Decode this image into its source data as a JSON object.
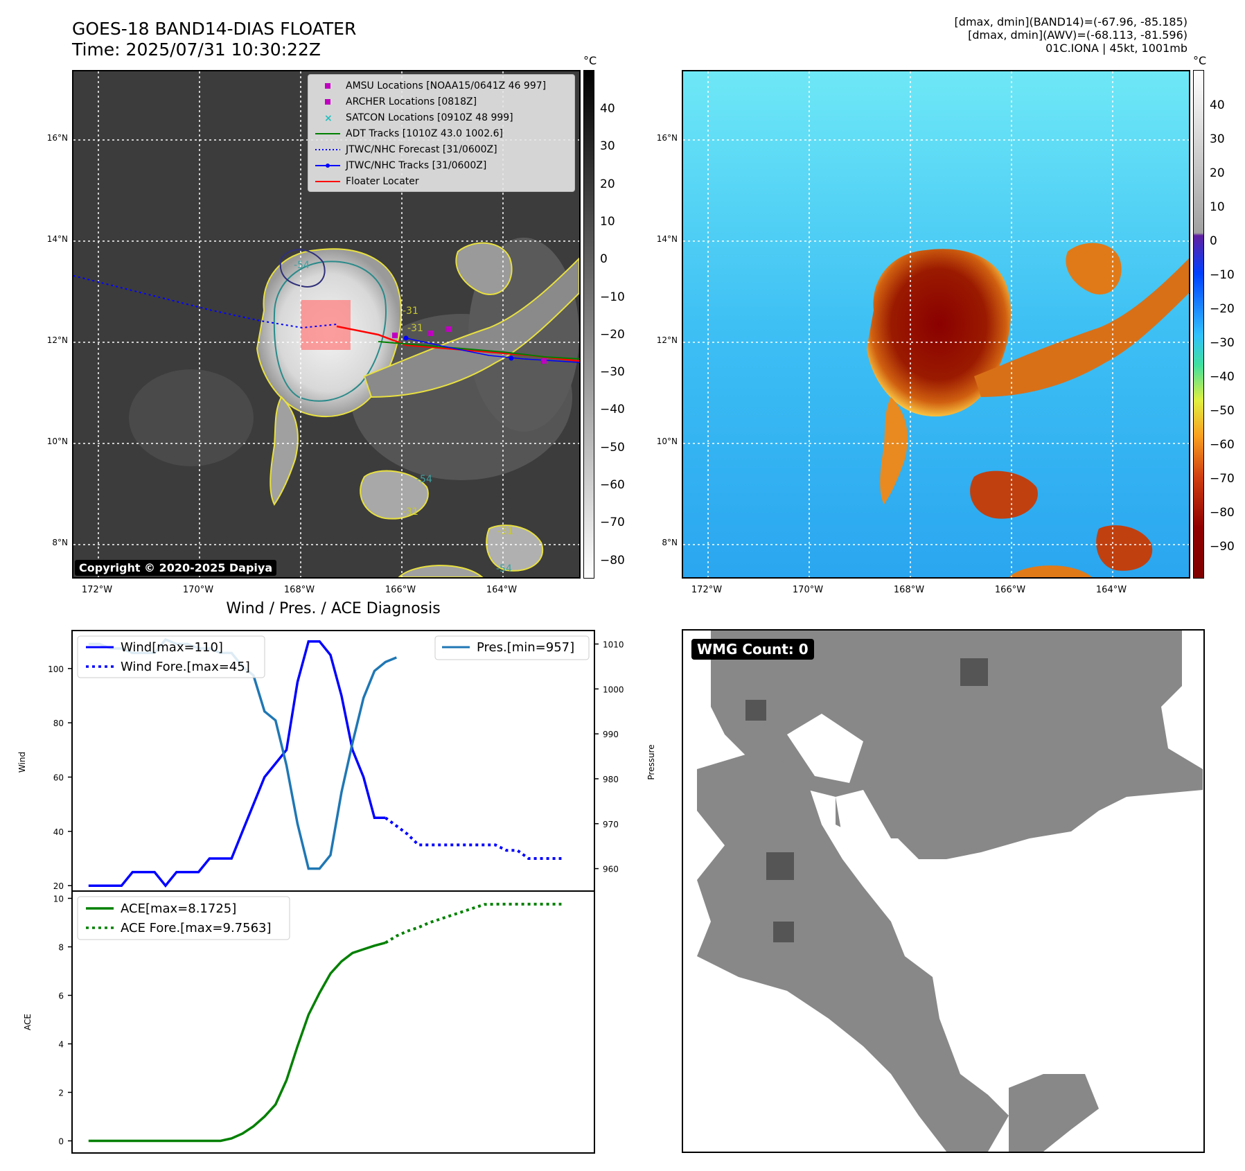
{
  "header": {
    "title_line1": "GOES-18 BAND14-DIAS FLOATER",
    "title_line2": "Time: 2025/07/31 10:30:22Z",
    "info_line1": "[dmax, dmin](BAND14)=(-67.96, -85.185)",
    "info_line2": "[dmax, dmin](AWV)=(-68.113, -81.596)",
    "info_line3": "01C.IONA | 45kt, 1001mb"
  },
  "map": {
    "lat_labels": [
      "16°N",
      "14°N",
      "12°N",
      "10°N",
      "8°N"
    ],
    "lon_labels": [
      "172°W",
      "170°W",
      "168°W",
      "166°W",
      "164°W"
    ],
    "copyright": "Copyright © 2020-2025 Dapiya",
    "contour_labels": [
      "-31",
      "-54",
      "-31",
      "-54",
      "-31",
      "-54",
      "-31"
    ]
  },
  "legend": {
    "items": [
      {
        "label": "AMSU Locations [NOAA15/0641Z 46 997]",
        "color": "#c000c0",
        "marker": "square"
      },
      {
        "label": "ARCHER Locations [0818Z]",
        "color": "#c000c0",
        "marker": "square"
      },
      {
        "label": "SATCON Locations [0910Z 48 999]",
        "color": "#20c0c0",
        "marker": "x"
      },
      {
        "label": "ADT Tracks [1010Z 43.0 1002.6]",
        "color": "#008000",
        "marker": "line"
      },
      {
        "label": "JTWC/NHC Forecast [31/0600Z]",
        "color": "#0000ff",
        "marker": "dotted"
      },
      {
        "label": "JTWC/NHC Tracks [31/0600Z]",
        "color": "#0000ff",
        "marker": "line-dot"
      },
      {
        "label": "Floater Locater",
        "color": "#ff0000",
        "marker": "line"
      }
    ]
  },
  "colorbar_left": {
    "unit": "°C",
    "ticks": [
      "40",
      "30",
      "20",
      "10",
      "0",
      "−10",
      "−20",
      "−30",
      "−40",
      "−50",
      "−60",
      "−70",
      "−80"
    ]
  },
  "colorbar_right": {
    "unit": "°C",
    "ticks": [
      "40",
      "30",
      "20",
      "10",
      "0",
      "−10",
      "−20",
      "−30",
      "−40",
      "−50",
      "−60",
      "−70",
      "−80",
      "−90"
    ]
  },
  "diagnosis": {
    "title": "Wind / Pres. / ACE Diagnosis",
    "wind_ylabel": "Wind",
    "pres_ylabel": "Pressure",
    "ace_ylabel": "ACE",
    "wind_ticks": [
      "100",
      "80",
      "60",
      "40",
      "20"
    ],
    "pres_ticks": [
      "1010",
      "1000",
      "990",
      "980",
      "970",
      "960"
    ],
    "ace_ticks": [
      "10",
      "8",
      "6",
      "4",
      "2",
      "0"
    ],
    "legend_wind": "Wind[max=110]",
    "legend_wind_fore": "Wind Fore.[max=45]",
    "legend_pres": "Pres.[min=957]",
    "legend_ace": "ACE[max=8.1725]",
    "legend_ace_fore": "ACE Fore.[max=9.7563]"
  },
  "wmg": {
    "label": "WMG Count: 0"
  },
  "chart_data": [
    {
      "type": "line",
      "title": "Wind / Pres. / ACE Diagnosis",
      "ylabel": "Wind",
      "ylim": [
        18,
        114
      ],
      "series": [
        {
          "name": "Wind[max=110]",
          "x": [
            0,
            1,
            2,
            3,
            4,
            5,
            6,
            7,
            8,
            9,
            10,
            11,
            12,
            13,
            14,
            15,
            16,
            17,
            18,
            19,
            20,
            21,
            22,
            23,
            24,
            25,
            26,
            27
          ],
          "values": [
            20,
            20,
            20,
            20,
            25,
            25,
            25,
            20,
            25,
            25,
            25,
            30,
            30,
            30,
            40,
            50,
            60,
            65,
            70,
            95,
            110,
            110,
            105,
            90,
            70,
            60,
            45,
            45
          ]
        },
        {
          "name": "Wind Fore.[max=45]",
          "x": [
            27,
            28,
            29,
            30,
            31,
            32,
            33,
            34,
            35,
            36,
            37,
            38,
            39,
            40,
            41,
            42,
            43
          ],
          "values": [
            45,
            42,
            39,
            35,
            35,
            35,
            35,
            35,
            35,
            35,
            35,
            33,
            33,
            30,
            30,
            30,
            30
          ]
        }
      ]
    },
    {
      "type": "line",
      "ylabel": "Pressure",
      "ylim": [
        955,
        1013
      ],
      "series": [
        {
          "name": "Pres.[min=957]",
          "x": [
            0,
            1,
            2,
            3,
            4,
            5,
            6,
            7,
            8,
            9,
            10,
            11,
            12,
            13,
            14,
            15,
            16,
            17,
            18,
            19,
            20,
            21,
            22,
            23,
            24,
            25,
            26,
            27,
            28
          ],
          "values": [
            1010,
            1010,
            1009,
            1009,
            1008,
            1008,
            1008,
            1011,
            1010,
            1010,
            1009,
            1009,
            1008,
            1008,
            1005,
            1003,
            995,
            993,
            983,
            970,
            960,
            960,
            963,
            977,
            988,
            998,
            1004,
            1006,
            1007
          ]
        }
      ]
    },
    {
      "type": "line",
      "ylabel": "ACE",
      "ylim": [
        -0.5,
        10.3
      ],
      "series": [
        {
          "name": "ACE[max=8.1725]",
          "x": [
            0,
            1,
            2,
            3,
            4,
            5,
            6,
            7,
            8,
            9,
            10,
            11,
            12,
            13,
            14,
            15,
            16,
            17,
            18,
            19,
            20,
            21,
            22,
            23,
            24,
            25,
            26,
            27
          ],
          "values": [
            0,
            0,
            0,
            0,
            0,
            0,
            0,
            0,
            0,
            0,
            0,
            0,
            0,
            0.1,
            0.3,
            0.6,
            1.0,
            1.5,
            2.5,
            3.9,
            5.2,
            6.1,
            6.9,
            7.4,
            7.75,
            7.9,
            8.05,
            8.17
          ]
        },
        {
          "name": "ACE Fore.[max=9.7563]",
          "x": [
            27,
            28,
            29,
            30,
            31,
            32,
            33,
            34,
            35,
            36,
            37,
            38,
            39,
            40,
            41,
            42,
            43
          ],
          "values": [
            8.17,
            8.45,
            8.65,
            8.8,
            9.0,
            9.15,
            9.3,
            9.45,
            9.6,
            9.75,
            9.76,
            9.76,
            9.76,
            9.76,
            9.76,
            9.76,
            9.76
          ]
        }
      ]
    }
  ]
}
